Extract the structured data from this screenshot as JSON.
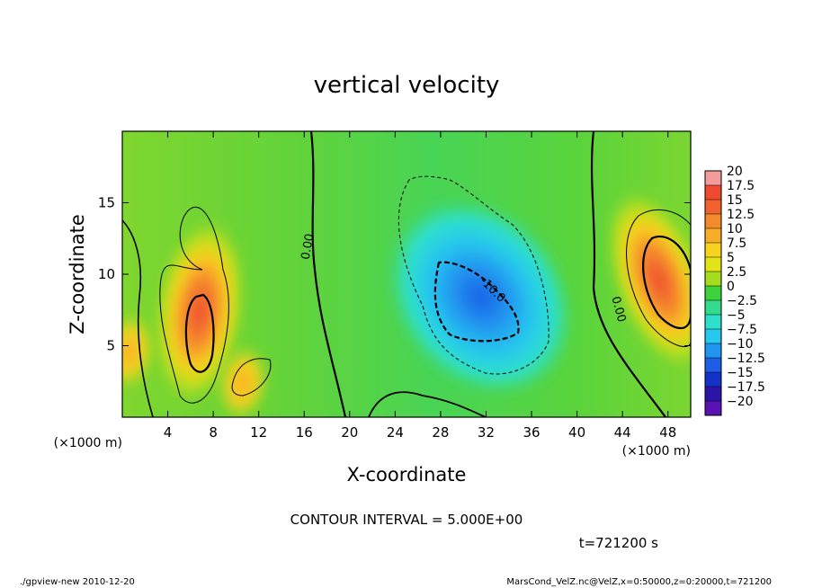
{
  "chart_data": {
    "type": "heatmap",
    "title": "vertical velocity",
    "xlabel": "X-coordinate",
    "ylabel": "Z-coordinate",
    "x_unit": "(×1000 m)",
    "y_unit": "(×1000 m)",
    "x_ticks": [
      "4",
      "8",
      "12",
      "16",
      "20",
      "24",
      "28",
      "32",
      "36",
      "40",
      "44",
      "48"
    ],
    "x_tick_values": [
      4,
      8,
      12,
      16,
      20,
      24,
      28,
      32,
      36,
      40,
      44,
      48
    ],
    "y_ticks": [
      "5",
      "10",
      "15"
    ],
    "y_tick_values": [
      5,
      10,
      15
    ],
    "xlim": [
      0,
      50
    ],
    "ylim": [
      0,
      20
    ],
    "colorbar": {
      "levels": [
        "20",
        "17.5",
        "15",
        "12.5",
        "10",
        "7.5",
        "5",
        "2.5",
        "0",
        "−2.5",
        "−5",
        "−7.5",
        "−10",
        "−12.5",
        "−15",
        "−17.5",
        "−20"
      ],
      "level_values": [
        20,
        17.5,
        15,
        12.5,
        10,
        7.5,
        5,
        2.5,
        0,
        -2.5,
        -5,
        -7.5,
        -10,
        -12.5,
        -15,
        -17.5,
        -20
      ],
      "colors": [
        "#f49c9c",
        "#ef4a30",
        "#f2622e",
        "#f58a2c",
        "#f7ad27",
        "#f7d21f",
        "#e3e417",
        "#a6dc1e",
        "#3cd23a",
        "#32dc8c",
        "#2ee0cb",
        "#27c7ee",
        "#2196f0",
        "#1c5fe6",
        "#1532c8",
        "#2c14a8",
        "#5a12b4"
      ]
    },
    "features": [
      {
        "x": 6.8,
        "z": 7.4,
        "value": 14,
        "sign": "positive"
      },
      {
        "x": 47.2,
        "z": 9.6,
        "value": 13,
        "sign": "positive"
      },
      {
        "x": 31.5,
        "z": 8.4,
        "value": -12,
        "sign": "negative"
      },
      {
        "x": 10.6,
        "z": 2.4,
        "value": 7,
        "sign": "positive"
      },
      {
        "x": 0.6,
        "z": 4.6,
        "value": 8,
        "sign": "positive"
      }
    ],
    "contour_labels": [
      "0.00",
      "-10.0",
      "0.00"
    ],
    "contour_interval_text": "CONTOUR INTERVAL = 5.000E+00",
    "time_text": "t=721200 s"
  },
  "footer": {
    "left": "./gpview-new  2010-12-20",
    "right": "MarsCond_VelZ.nc@VelZ,x=0:50000,z=0:20000,t=721200"
  }
}
